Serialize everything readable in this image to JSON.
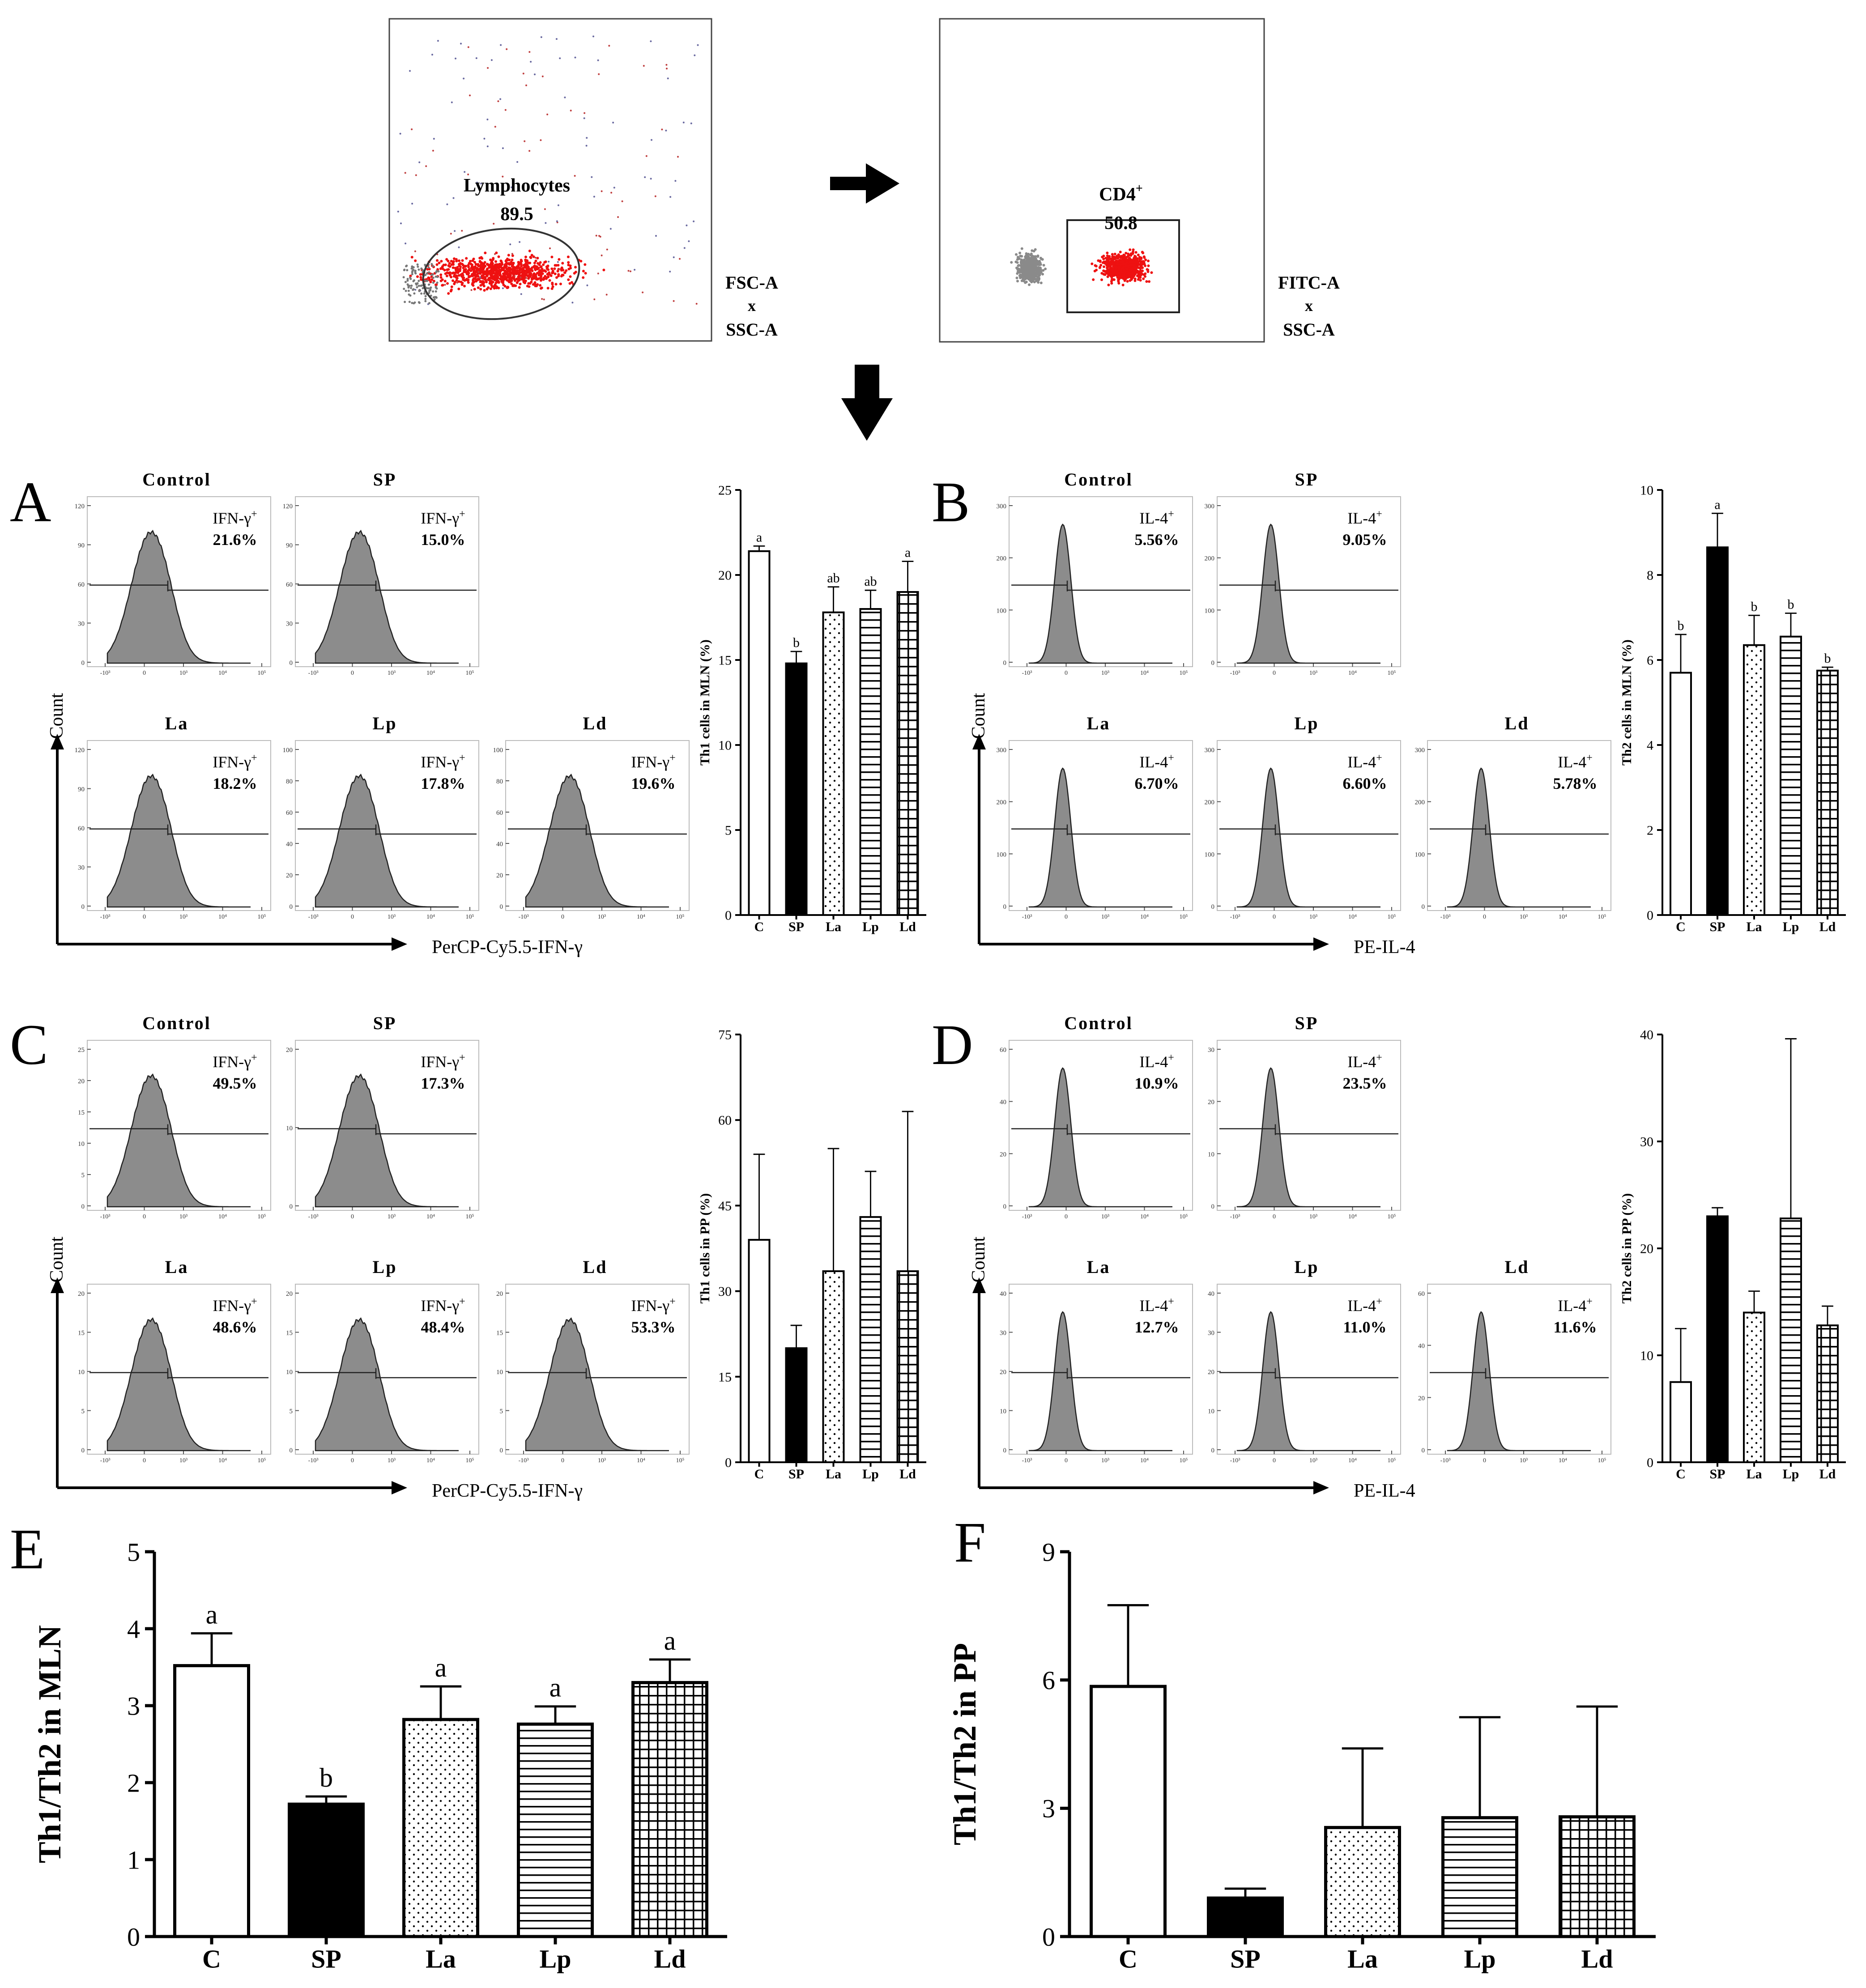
{
  "panel_letters": [
    "A",
    "B",
    "C",
    "D",
    "E",
    "F"
  ],
  "arrow_gate_label": "→",
  "gating": [
    {
      "gate_name": "Lymphocytes",
      "gate_value": "89.5",
      "axis_x": "FSC-A",
      "axis_sep": "x",
      "axis_y": "SSC-A"
    },
    {
      "gate_name": "CD4",
      "gate_sup": "+",
      "gate_value": "50.8",
      "axis_x": "FITC-A",
      "axis_sep": "x",
      "axis_y": "SSC-A"
    }
  ],
  "hist_panels": [
    {
      "letter": "A",
      "ylabel": "Count",
      "xlabel": "PerCP-Cy5.5-IFN-γ",
      "marker": "IFN-γ",
      "sup": "+",
      "ymax_ticks": [
        [
          "0",
          "30",
          "60",
          "90",
          "120"
        ],
        [
          "0",
          "30",
          "60",
          "90",
          "120"
        ],
        [
          "0",
          "30",
          "60",
          "90",
          "120"
        ],
        [
          "0",
          "20",
          "40",
          "60",
          "80",
          "100"
        ],
        [
          "0",
          "20",
          "40",
          "60",
          "80",
          "100"
        ]
      ],
      "plots": [
        {
          "group": "Control",
          "pct": "21.6%"
        },
        {
          "group": "SP",
          "pct": "15.0%"
        },
        {
          "group": "La",
          "pct": "18.2%"
        },
        {
          "group": "Lp",
          "pct": "17.8%"
        },
        {
          "group": "Ld",
          "pct": "19.6%"
        }
      ]
    },
    {
      "letter": "B",
      "ylabel": "Count",
      "xlabel": "PE-IL-4",
      "marker": "IL-4",
      "sup": "+",
      "ymax_ticks": [
        [
          "0",
          "100",
          "200",
          "300"
        ],
        [
          "0",
          "100",
          "200",
          "300"
        ],
        [
          "0",
          "100",
          "200",
          "300"
        ],
        [
          "0",
          "100",
          "200",
          "300"
        ],
        [
          "0",
          "100",
          "200",
          "300"
        ]
      ],
      "plots": [
        {
          "group": "Control",
          "pct": "5.56%"
        },
        {
          "group": "SP",
          "pct": "9.05%"
        },
        {
          "group": "La",
          "pct": "6.70%"
        },
        {
          "group": "Lp",
          "pct": "6.60%"
        },
        {
          "group": "Ld",
          "pct": "5.78%"
        }
      ]
    },
    {
      "letter": "C",
      "ylabel": "Count",
      "xlabel": "PerCP-Cy5.5-IFN-γ",
      "marker": "IFN-γ",
      "sup": "+",
      "ymax_ticks": [
        [
          "0",
          "5",
          "10",
          "15",
          "20",
          "25"
        ],
        [
          "0",
          "10",
          "20"
        ],
        [
          "0",
          "5",
          "10",
          "15",
          "20"
        ],
        [
          "0",
          "5",
          "10",
          "15",
          "20"
        ],
        [
          "0",
          "5",
          "10",
          "15",
          "20"
        ]
      ],
      "plots": [
        {
          "group": "Control",
          "pct": "49.5%"
        },
        {
          "group": "SP",
          "pct": "17.3%"
        },
        {
          "group": "La",
          "pct": "48.6%"
        },
        {
          "group": "Lp",
          "pct": "48.4%"
        },
        {
          "group": "Ld",
          "pct": "53.3%"
        }
      ]
    },
    {
      "letter": "D",
      "ylabel": "Count",
      "xlabel": "PE-IL-4",
      "marker": "IL-4",
      "sup": "+",
      "ymax_ticks": [
        [
          "0",
          "20",
          "40",
          "60"
        ],
        [
          "0",
          "10",
          "20",
          "30"
        ],
        [
          "0",
          "10",
          "20",
          "30",
          "40"
        ],
        [
          "0",
          "10",
          "20",
          "30",
          "40"
        ],
        [
          "0",
          "20",
          "40",
          "60"
        ]
      ],
      "plots": [
        {
          "group": "Control",
          "pct": "10.9%"
        },
        {
          "group": "SP",
          "pct": "23.5%"
        },
        {
          "group": "La",
          "pct": "12.7%"
        },
        {
          "group": "Lp",
          "pct": "11.0%"
        },
        {
          "group": "Ld",
          "pct": "11.6%"
        }
      ]
    }
  ],
  "hist_xticks": [
    "-10³",
    "0",
    "10³",
    "10⁴",
    "10⁵"
  ],
  "chart_data": [
    {
      "id": "A",
      "type": "bar",
      "ylabel": "Th1 cells in MLN (%)",
      "categories": [
        "C",
        "SP",
        "La",
        "Lp",
        "Ld"
      ],
      "values": [
        21.4,
        14.8,
        17.8,
        18.0,
        19.0
      ],
      "errors": [
        0.3,
        0.7,
        1.5,
        1.1,
        1.8
      ],
      "letters": [
        "a",
        "b",
        "ab",
        "ab",
        "a"
      ],
      "ylim": [
        0,
        25
      ],
      "yticks": [
        0,
        5,
        10,
        15,
        20,
        25
      ]
    },
    {
      "id": "B",
      "type": "bar",
      "ylabel": "Th2 cells in MLN (%)",
      "categories": [
        "C",
        "SP",
        "La",
        "Lp",
        "Ld"
      ],
      "values": [
        5.7,
        8.65,
        6.35,
        6.55,
        5.75
      ],
      "errors": [
        0.9,
        0.8,
        0.7,
        0.55,
        0.08
      ],
      "letters": [
        "b",
        "a",
        "b",
        "b",
        "b"
      ],
      "ylim": [
        0,
        10
      ],
      "yticks": [
        0,
        2,
        4,
        6,
        8,
        10
      ]
    },
    {
      "id": "C",
      "type": "bar",
      "ylabel": "Th1 cells in PP (%)",
      "categories": [
        "C",
        "SP",
        "La",
        "Lp",
        "Ld"
      ],
      "values": [
        39,
        20,
        33.5,
        43,
        33.5
      ],
      "errors": [
        15,
        4,
        21.5,
        8,
        28
      ],
      "letters": [
        "",
        "",
        "",
        "",
        ""
      ],
      "ylim": [
        0,
        75
      ],
      "yticks": [
        0,
        15,
        30,
        45,
        60,
        75
      ]
    },
    {
      "id": "D",
      "type": "bar",
      "ylabel": "Th2 cells in PP (%)",
      "categories": [
        "C",
        "SP",
        "La",
        "Lp",
        "Ld"
      ],
      "values": [
        7.5,
        23,
        14,
        22.8,
        12.8
      ],
      "errors": [
        5,
        0.8,
        2,
        16.8,
        1.8
      ],
      "letters": [
        "",
        "",
        "",
        "",
        ""
      ],
      "ylim": [
        0,
        40
      ],
      "yticks": [
        0,
        10,
        20,
        30,
        40
      ]
    },
    {
      "id": "E",
      "type": "bar",
      "ylabel": "Th1/Th2 in MLN",
      "categories": [
        "C",
        "SP",
        "La",
        "Lp",
        "Ld"
      ],
      "values": [
        3.52,
        1.72,
        2.82,
        2.76,
        3.3
      ],
      "errors": [
        0.42,
        0.1,
        0.43,
        0.23,
        0.3
      ],
      "letters": [
        "a",
        "b",
        "a",
        "a",
        "a"
      ],
      "ylim": [
        0,
        5
      ],
      "yticks": [
        0,
        1,
        2,
        3,
        4,
        5
      ]
    },
    {
      "id": "F",
      "type": "bar",
      "ylabel": "Th1/Th2 in PP",
      "categories": [
        "C",
        "SP",
        "La",
        "Lp",
        "Ld"
      ],
      "values": [
        5.85,
        0.9,
        2.55,
        2.78,
        2.8
      ],
      "errors": [
        1.9,
        0.22,
        1.85,
        2.35,
        2.58
      ],
      "letters": [
        "",
        "",
        "",
        "",
        ""
      ],
      "ylim": [
        0,
        9
      ],
      "yticks": [
        0,
        3,
        6,
        9
      ]
    }
  ]
}
